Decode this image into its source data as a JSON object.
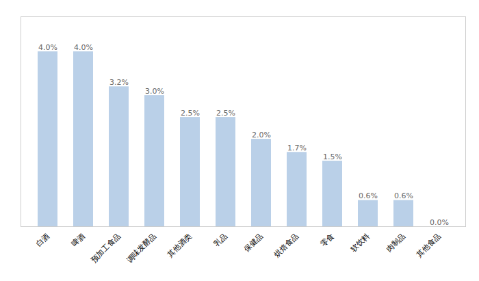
{
  "chart_data": {
    "type": "bar",
    "categories": [
      "白酒",
      "啤酒",
      "预加工食品",
      "调味发酵品",
      "其他酒类",
      "乳品",
      "保健品",
      "烘焙食品",
      "零食",
      "软饮料",
      "肉制品",
      "其他食品"
    ],
    "values": [
      4.0,
      4.0,
      3.2,
      3.0,
      2.5,
      2.5,
      2.0,
      1.7,
      1.5,
      0.6,
      0.6,
      0.0
    ],
    "value_labels": [
      "4.0%",
      "4.0%",
      "3.2%",
      "3.0%",
      "2.5%",
      "2.5%",
      "2.0%",
      "1.7%",
      "1.5%",
      "0.6%",
      "0.6%",
      "0.0%"
    ],
    "color": "#bad0e8",
    "ylim": [
      0,
      4.8
    ],
    "grid": false,
    "data_labels": true,
    "tick_labels": "x"
  }
}
